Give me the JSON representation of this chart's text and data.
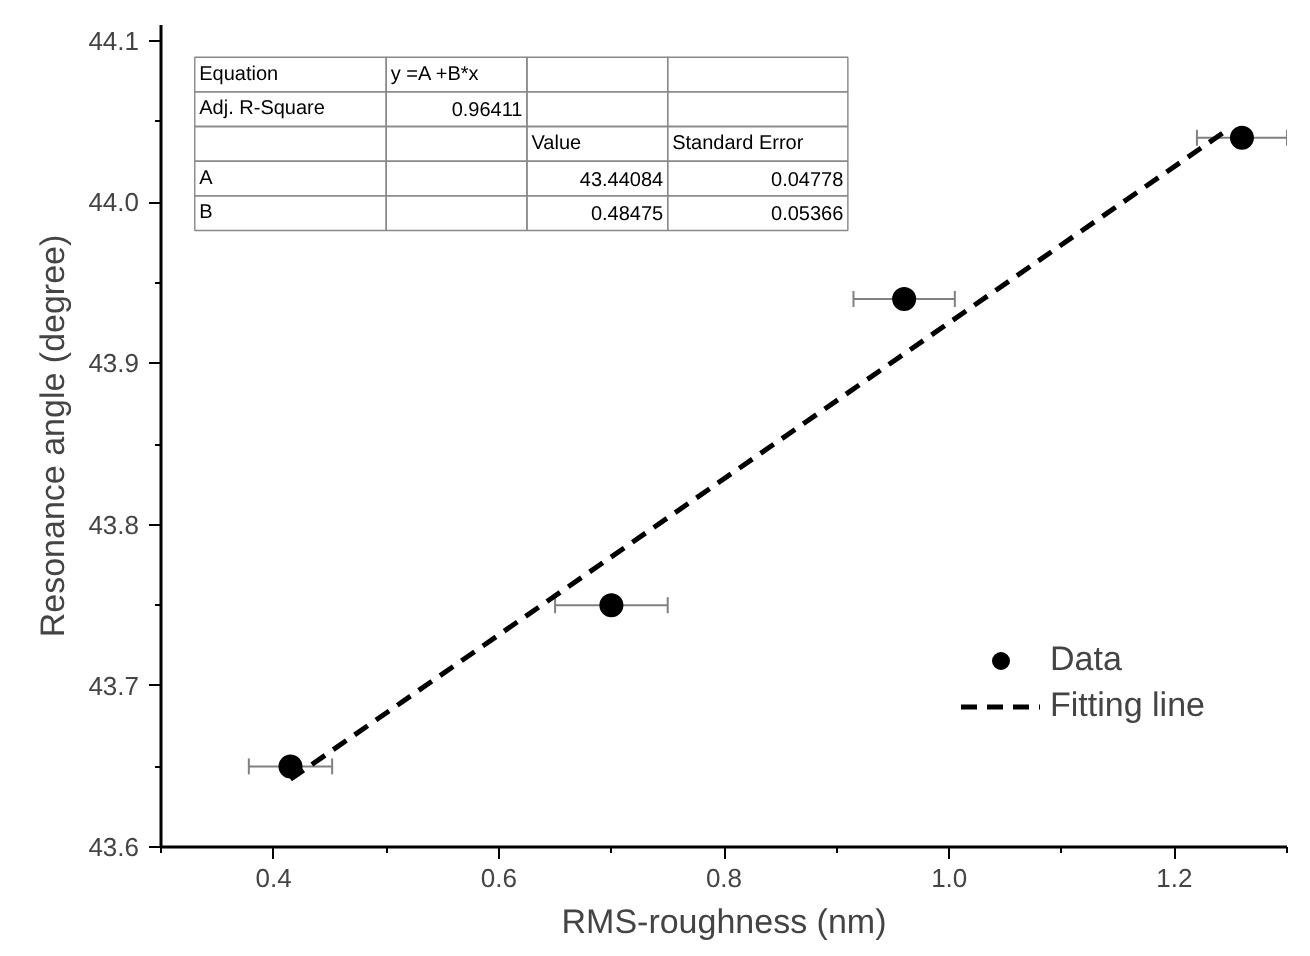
{
  "chart_data": {
    "type": "scatter",
    "xlabel": "RMS-roughness (nm)",
    "ylabel": "Resonance angle (degree)",
    "xlim": [
      0.3,
      1.3
    ],
    "ylim": [
      43.6,
      44.11
    ],
    "xticks": [
      0.4,
      0.6,
      0.8,
      {
        "value": 1,
        "label": "1.0"
      },
      1.2
    ],
    "yticks": [
      43.6,
      43.7,
      43.8,
      43.9,
      {
        "value": 44,
        "label": "44.0"
      },
      44.1
    ],
    "grid": false,
    "legend": "bottom right",
    "series": [
      {
        "name": "Data",
        "marker": "circle",
        "color": "#000000",
        "x": [
          0.415,
          0.7,
          0.96,
          1.26
        ],
        "values": [
          43.65,
          43.75,
          43.94,
          44.04
        ],
        "xerrors": [
          0.037,
          0.05,
          0.045,
          0.04
        ]
      },
      {
        "name": "Fitting line",
        "type": "line",
        "color": "#000000",
        "line_style": "dashed",
        "x": [
          0.415,
          1.245
        ],
        "values": [
          43.642,
          44.044
        ]
      }
    ],
    "annotations": [
      "Equation\ty =A +B*x\t\t",
      "Adj. R-Square\t0.96411\t\t",
      "\t\tValue\tStandard Error",
      "A\t\t43.44084\t0.04778",
      "B\t\t0.48475\t0.05366"
    ]
  }
}
